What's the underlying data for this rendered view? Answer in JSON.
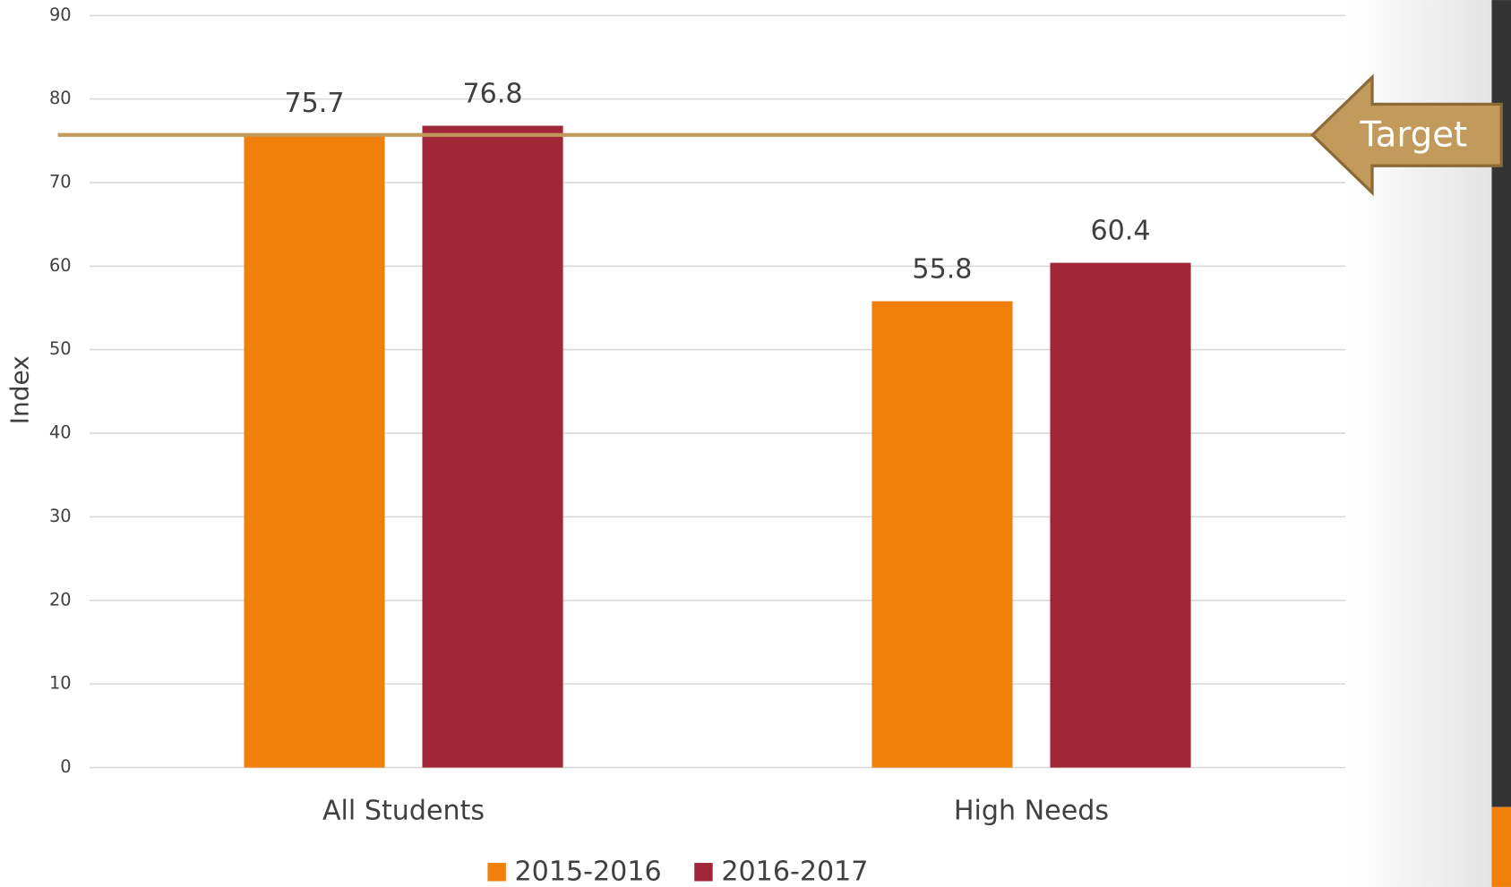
{
  "chart_data": {
    "type": "bar",
    "y_label": "Index",
    "categories": [
      "All Students",
      "High Needs"
    ],
    "series": [
      {
        "name": "2015-2016",
        "color": "#f0800a",
        "values": [
          75.7,
          55.8
        ]
      },
      {
        "name": "2016-2017",
        "color": "#a12637",
        "values": [
          76.8,
          60.4
        ]
      }
    ],
    "ylim": [
      0,
      90
    ],
    "yticks": [
      0,
      10,
      20,
      30,
      40,
      50,
      60,
      70,
      80,
      90
    ],
    "grid": true,
    "legend": "bottom",
    "target": {
      "label": "Target",
      "value": 75.7,
      "color": "#c29a5b"
    }
  }
}
